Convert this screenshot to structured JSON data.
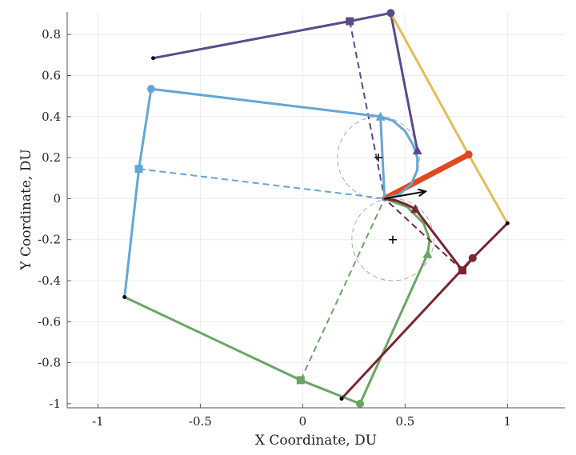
{
  "chart_data": {
    "type": "line",
    "title": "",
    "xlabel": "X Coordinate, DU",
    "ylabel": "Y Coordinate, DU",
    "xlim": [
      -1.15,
      1.28
    ],
    "ylim": [
      -1.02,
      0.91
    ],
    "xticks": [
      -1,
      -0.5,
      0,
      0.5,
      1
    ],
    "yticks": [
      -1,
      -0.8,
      -0.6,
      -0.4,
      -0.2,
      0,
      0.2,
      0.4,
      0.6,
      0.8
    ],
    "xtick_labels": [
      "-1",
      "-0.5",
      "0",
      "0.5",
      "1"
    ],
    "ytick_labels": [
      "-1",
      "-0.8",
      "-0.6",
      "-0.4",
      "-0.2",
      "0",
      "0.2",
      "0.4",
      "0.6",
      "0.8"
    ],
    "grid": true,
    "circles": [
      {
        "center": [
          0.37,
          0.2
        ],
        "radius": 0.2,
        "color": "#aaaaaa"
      },
      {
        "center": [
          0.44,
          -0.2
        ],
        "radius": 0.2,
        "color": "#aaaaaa"
      }
    ],
    "centers": [
      [
        0.37,
        0.2
      ],
      [
        0.44,
        -0.2
      ]
    ],
    "series": [
      {
        "color": "#5b4a8b",
        "solid": [
          [
            0.56,
            0.235
          ],
          [
            0.43,
            0.905
          ],
          [
            0.23,
            0.865
          ],
          [
            -0.73,
            0.685
          ]
        ],
        "dashed": [
          [
            0.23,
            0.865
          ],
          [
            0.4,
            0
          ]
        ],
        "markers": [
          {
            "shape": "triangle",
            "at": [
              0.56,
              0.235
            ]
          },
          {
            "shape": "circle",
            "at": [
              0.43,
              0.905
            ]
          },
          {
            "shape": "square",
            "at": [
              0.23,
              0.865
            ]
          },
          {
            "shape": "dot",
            "at": [
              -0.73,
              0.685
            ]
          }
        ]
      },
      {
        "color": "#e6bb57",
        "solid": [
          [
            0.43,
            0.905
          ],
          [
            0.81,
            0.215
          ],
          [
            1.0,
            -0.12
          ]
        ],
        "dashed": [],
        "markers": [
          {
            "shape": "dot",
            "at": [
              1.0,
              -0.12
            ]
          }
        ]
      },
      {
        "color": "#e2481f",
        "solid": [
          [
            0.4,
            0
          ],
          [
            0.81,
            0.215
          ]
        ],
        "dashed": [],
        "markers": [
          {
            "shape": "circle",
            "at": [
              0.81,
              0.215
            ]
          }
        ]
      },
      {
        "color": "#64a6d6",
        "solid": [
          [
            0.38,
            0.4
          ],
          [
            0.44,
            0.38
          ],
          [
            0.5,
            0.33
          ],
          [
            0.54,
            0.26
          ],
          [
            0.56,
            0.2
          ],
          [
            0.56,
            0.14
          ],
          [
            0.53,
            0.07
          ],
          [
            0.47,
            0.02
          ],
          [
            0.4,
            0
          ],
          [
            0.38,
            0.4
          ],
          [
            -0.74,
            0.535
          ],
          [
            -0.8,
            0.145
          ],
          [
            -0.87,
            -0.48
          ]
        ],
        "dashed": [
          [
            -0.8,
            0.145
          ],
          [
            0.4,
            0
          ]
        ],
        "markers": [
          {
            "shape": "triangle",
            "at": [
              0.38,
              0.4
            ]
          },
          {
            "shape": "circle",
            "at": [
              -0.74,
              0.535
            ]
          },
          {
            "shape": "square",
            "at": [
              -0.8,
              0.145
            ]
          },
          {
            "shape": "dot",
            "at": [
              -0.87,
              -0.48
            ]
          }
        ]
      },
      {
        "color": "#6aa565",
        "solid": [
          [
            0.4,
            0
          ],
          [
            0.51,
            -0.04
          ],
          [
            0.59,
            -0.12
          ],
          [
            0.62,
            -0.2
          ],
          [
            0.61,
            -0.27
          ],
          [
            0.28,
            -1.0
          ],
          [
            -0.01,
            -0.885
          ],
          [
            -0.87,
            -0.48
          ]
        ],
        "dashed": [
          [
            -0.01,
            -0.885
          ],
          [
            0.4,
            0
          ]
        ],
        "markers": [
          {
            "shape": "triangle",
            "at": [
              0.61,
              -0.27
            ]
          },
          {
            "shape": "circle",
            "at": [
              0.28,
              -1.0
            ]
          },
          {
            "shape": "square",
            "at": [
              -0.01,
              -0.885
            ]
          },
          {
            "shape": "dot",
            "at": [
              0.19,
              -0.975
            ]
          }
        ]
      },
      {
        "color": "#7a2633",
        "solid": [
          [
            0.4,
            0
          ],
          [
            0.46,
            -0.01
          ],
          [
            0.51,
            -0.03
          ],
          [
            0.55,
            -0.05
          ],
          [
            0.78,
            -0.35
          ],
          [
            0.83,
            -0.29
          ],
          [
            1.0,
            -0.12
          ],
          [
            0.83,
            -0.29
          ],
          [
            0.19,
            -0.975
          ]
        ],
        "dashed": [
          [
            0.78,
            -0.35
          ],
          [
            0.4,
            0
          ]
        ],
        "markers": [
          {
            "shape": "triangle",
            "at": [
              0.55,
              -0.05
            ]
          },
          {
            "shape": "circle",
            "at": [
              0.83,
              -0.29
            ]
          },
          {
            "shape": "square",
            "at": [
              0.78,
              -0.35
            ]
          },
          {
            "shape": "dot",
            "at": [
              0.19,
              -0.975
            ]
          }
        ]
      }
    ],
    "arrow": {
      "from": [
        0.4,
        0
      ],
      "to": [
        0.6,
        0.035
      ],
      "color": "#000000"
    }
  }
}
